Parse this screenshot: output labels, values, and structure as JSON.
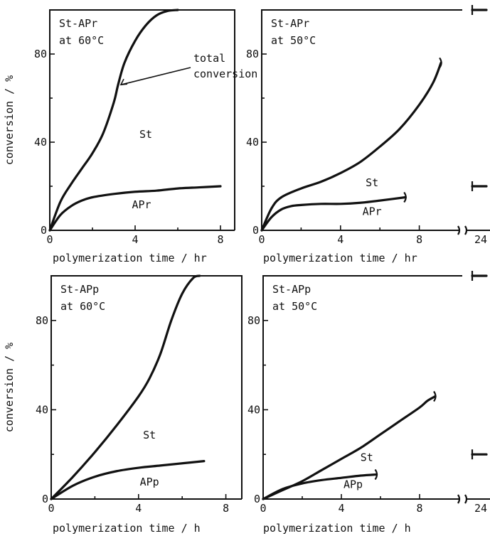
{
  "chart_data": [
    {
      "type": "line",
      "panel_label": [
        "St-APr",
        "at 60°C"
      ],
      "xlabel": "polymerization time / hr",
      "ylabel": "conversion / %",
      "xlim": [
        0,
        8.6
      ],
      "ylim": [
        0,
        100
      ],
      "x_ticks": [
        0,
        4,
        8
      ],
      "y_ticks": [
        0,
        40,
        80
      ],
      "annotation": {
        "lines": [
          "total",
          "conversion"
        ],
        "points_to": {
          "x": 3.2,
          "y": 68
        }
      },
      "series": [
        {
          "label": "St",
          "label_at": {
            "x": 4.5,
            "y": 42
          },
          "points": [
            [
              0,
              0
            ],
            [
              0.5,
              13
            ],
            [
              1,
              21
            ],
            [
              1.5,
              28
            ],
            [
              2,
              35
            ],
            [
              2.5,
              44
            ],
            [
              3,
              58
            ],
            [
              3.2,
              66
            ],
            [
              3.5,
              76
            ],
            [
              4,
              86
            ],
            [
              4.5,
              93
            ],
            [
              5,
              97.5
            ],
            [
              5.5,
              99.5
            ],
            [
              6,
              100
            ]
          ]
        },
        {
          "label": "APr",
          "label_at": {
            "x": 4.3,
            "y": 10
          },
          "points": [
            [
              0,
              0
            ],
            [
              0.5,
              7
            ],
            [
              1,
              11
            ],
            [
              1.5,
              13.5
            ],
            [
              2,
              15
            ],
            [
              3,
              16.5
            ],
            [
              4,
              17.5
            ],
            [
              5,
              18
            ],
            [
              6,
              19
            ],
            [
              7,
              19.5
            ],
            [
              8,
              20
            ]
          ]
        }
      ]
    },
    {
      "type": "line",
      "panel_label": [
        "St-APr",
        "at 50°C"
      ],
      "xlabel": "polymerization time / hr",
      "ylabel": "",
      "xlim": [
        0,
        10
      ],
      "ylim": [
        0,
        100
      ],
      "x_ticks": [
        0,
        4,
        8
      ],
      "extra_x_tick_label": "24",
      "y_ticks": [
        0,
        40,
        80
      ],
      "axis_break": true,
      "series": [
        {
          "label": "St",
          "label_at": {
            "x": 5.6,
            "y": 20
          },
          "points": [
            [
              0,
              0
            ],
            [
              0.5,
              10
            ],
            [
              1,
              15
            ],
            [
              2,
              19
            ],
            [
              3,
              22
            ],
            [
              4,
              26
            ],
            [
              5,
              31
            ],
            [
              6,
              38
            ],
            [
              7,
              46
            ],
            [
              8,
              57
            ],
            [
              8.7,
              67
            ],
            [
              9.1,
              76
            ]
          ],
          "after_break": {
            "x": "24",
            "y": 100
          }
        },
        {
          "label": "APr",
          "label_at": {
            "x": 5.6,
            "y": 7
          },
          "points": [
            [
              0,
              0
            ],
            [
              0.5,
              6
            ],
            [
              1,
              9.5
            ],
            [
              1.5,
              11
            ],
            [
              2,
              11.5
            ],
            [
              3,
              12
            ],
            [
              4,
              12
            ],
            [
              5,
              12.5
            ],
            [
              6,
              13.5
            ],
            [
              7.3,
              15
            ]
          ],
          "after_break": {
            "x": "24",
            "y": 20
          }
        }
      ]
    },
    {
      "type": "line",
      "panel_label": [
        "St-APp",
        "at 60°C"
      ],
      "xlabel": "polymerization time / h",
      "ylabel": "conversion / %",
      "xlim": [
        0,
        8.6
      ],
      "ylim": [
        0,
        100
      ],
      "x_ticks": [
        0,
        4,
        8
      ],
      "y_ticks": [
        0,
        40,
        80
      ],
      "series": [
        {
          "label": "St",
          "label_at": {
            "x": 4.5,
            "y": 27
          },
          "points": [
            [
              0,
              0
            ],
            [
              1,
              10
            ],
            [
              2,
              21
            ],
            [
              3,
              33
            ],
            [
              4,
              46
            ],
            [
              4.5,
              54
            ],
            [
              5,
              65
            ],
            [
              5.5,
              80
            ],
            [
              6,
              92
            ],
            [
              6.5,
              99
            ],
            [
              6.8,
              100
            ]
          ]
        },
        {
          "label": "APp",
          "label_at": {
            "x": 4.5,
            "y": 6
          },
          "points": [
            [
              0,
              0
            ],
            [
              1,
              6
            ],
            [
              2,
              10
            ],
            [
              3,
              12.5
            ],
            [
              4,
              14
            ],
            [
              5,
              15
            ],
            [
              6,
              16
            ],
            [
              7,
              17
            ]
          ]
        }
      ]
    },
    {
      "type": "line",
      "panel_label": [
        "St-APp",
        "at 50°C"
      ],
      "xlabel": "polymerization time / h",
      "ylabel": "",
      "xlim": [
        0,
        10
      ],
      "ylim": [
        0,
        100
      ],
      "x_ticks": [
        0,
        4,
        8
      ],
      "extra_x_tick_label": "24",
      "y_ticks": [
        0,
        40,
        80
      ],
      "axis_break": true,
      "series": [
        {
          "label": "St",
          "label_at": {
            "x": 5.3,
            "y": 17
          },
          "points": [
            [
              0,
              0
            ],
            [
              1,
              4
            ],
            [
              2,
              8
            ],
            [
              3,
              13
            ],
            [
              4,
              18
            ],
            [
              5,
              23
            ],
            [
              6,
              29
            ],
            [
              7,
              35
            ],
            [
              8,
              41
            ],
            [
              8.4,
              44
            ],
            [
              8.8,
              46
            ]
          ],
          "after_break": {
            "x": "24",
            "y": 100
          }
        },
        {
          "label": "APp",
          "label_at": {
            "x": 4.6,
            "y": 5
          },
          "points": [
            [
              0,
              0
            ],
            [
              1,
              4.5
            ],
            [
              2,
              7
            ],
            [
              3,
              8.5
            ],
            [
              4,
              9.5
            ],
            [
              5,
              10.5
            ],
            [
              5.8,
              11
            ]
          ],
          "after_break": {
            "x": "24",
            "y": 20
          }
        }
      ]
    }
  ]
}
